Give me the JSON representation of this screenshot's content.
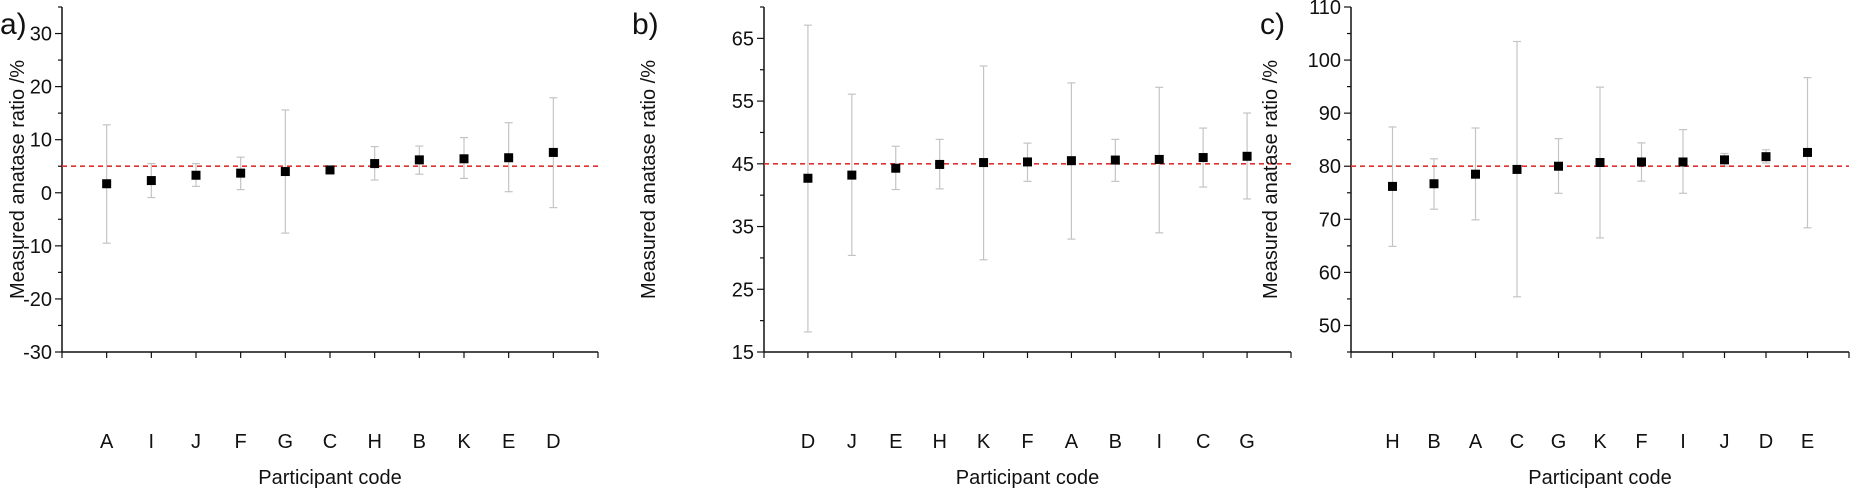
{
  "chart_data": [
    {
      "type": "scatter",
      "panel_label": "a)",
      "xlabel": "Participant code",
      "ylabel": "Measured anatase ratio /%",
      "ylim": [
        -30,
        35
      ],
      "yticks": [
        -30,
        -20,
        -10,
        0,
        10,
        20,
        30
      ],
      "reference_value": 5,
      "categories": [
        "A",
        "I",
        "J",
        "F",
        "G",
        "C",
        "H",
        "B",
        "K",
        "E",
        "D"
      ],
      "values": [
        1.7,
        2.3,
        3.3,
        3.7,
        4.0,
        4.3,
        5.5,
        6.2,
        6.4,
        6.6,
        7.6
      ],
      "error_upper": [
        12.8,
        5.5,
        5.5,
        6.7,
        15.6,
        4.8,
        8.7,
        8.8,
        10.4,
        13.2,
        17.9
      ],
      "error_lower": [
        -9.5,
        -0.9,
        1.2,
        0.6,
        -7.6,
        3.7,
        2.4,
        3.5,
        2.7,
        0.2,
        -2.8
      ],
      "grid": false
    },
    {
      "type": "scatter",
      "panel_label": "b)",
      "xlabel": "Participant code",
      "ylabel": "Measured anatase ratio /%",
      "ylim": [
        15,
        70
      ],
      "yticks": [
        15,
        25,
        35,
        45,
        55,
        65
      ],
      "reference_value": 45,
      "categories": [
        "D",
        "J",
        "E",
        "H",
        "K",
        "F",
        "A",
        "B",
        "I",
        "C",
        "G"
      ],
      "values": [
        42.7,
        43.2,
        44.3,
        44.9,
        45.2,
        45.3,
        45.5,
        45.6,
        45.7,
        46.0,
        46.2
      ],
      "error_upper": [
        67.1,
        56.1,
        47.8,
        48.9,
        60.6,
        48.3,
        57.9,
        48.9,
        57.2,
        50.7,
        53.1
      ],
      "error_lower": [
        18.2,
        30.4,
        40.9,
        41.0,
        29.7,
        42.2,
        33.0,
        42.2,
        34.0,
        41.3,
        39.4
      ],
      "grid": false
    },
    {
      "type": "scatter",
      "panel_label": "c)",
      "xlabel": "Participant code",
      "ylabel": "Measured anatase ratio /%",
      "ylim": [
        45,
        110
      ],
      "yticks": [
        50,
        60,
        70,
        80,
        90,
        100,
        110
      ],
      "reference_value": 80,
      "categories": [
        "H",
        "B",
        "A",
        "C",
        "G",
        "K",
        "F",
        "I",
        "J",
        "D",
        "E"
      ],
      "values": [
        76.2,
        76.7,
        78.5,
        79.4,
        80.0,
        80.7,
        80.8,
        80.8,
        81.2,
        81.8,
        82.6
      ],
      "error_upper": [
        87.4,
        81.4,
        87.2,
        103.5,
        85.2,
        94.9,
        84.4,
        86.9,
        82.4,
        83.1,
        96.7
      ],
      "error_lower": [
        64.9,
        71.9,
        69.9,
        55.4,
        74.9,
        66.5,
        77.2,
        74.9,
        80.0,
        80.6,
        68.4
      ],
      "grid": false
    }
  ],
  "colors": {
    "marker": "#000000",
    "error_bar": "#c4c4c4",
    "reference_line": "#e03030",
    "axis": "#111111"
  }
}
